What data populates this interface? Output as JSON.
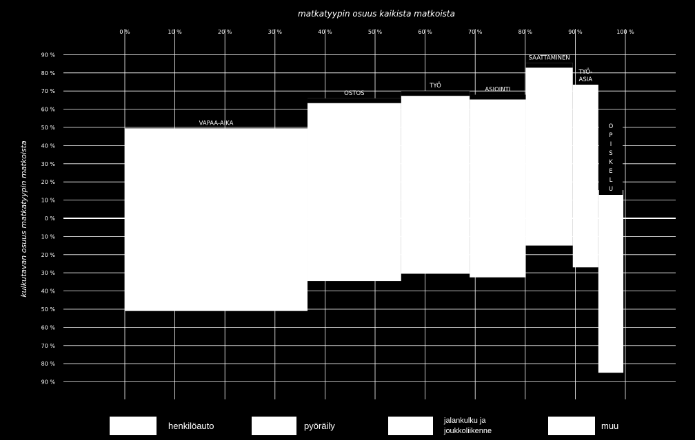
{
  "chart_data": {
    "type": "bar",
    "title": "",
    "xlabel": "matkatyypin osuus kaikista matkoista",
    "ylabel": "kulkutavan osuus matkatyypin matkoista",
    "x_ticks": [
      "0 %",
      "10 %",
      "20 %",
      "30 %",
      "40 %",
      "50 %",
      "60 %",
      "70 %",
      "80 %",
      "90 %",
      "100 %"
    ],
    "y_ticks_upper": [
      "90 %",
      "80 %",
      "70 %",
      "60 %",
      "50 %",
      "40 %",
      "30 %",
      "20 %",
      "10 %"
    ],
    "y_ticks_lower": [
      "10 %",
      "20 %",
      "30 %",
      "40 %",
      "50 %",
      "60 %",
      "70 %",
      "80 %",
      "90 %"
    ],
    "y_zero_label": "0 %",
    "xlim": [
      0,
      100
    ],
    "ylim": [
      -90,
      90
    ],
    "grid": true,
    "categories": [
      {
        "label": "VAPAA-AIKA",
        "x_start": 0,
        "x_end": 36.5,
        "top": 49.5,
        "bottom": 51
      },
      {
        "label": "OSTOS",
        "x_start": 36.5,
        "x_end": 55.2,
        "top": 66,
        "bottom": 34.5
      },
      {
        "label": "TYÖ",
        "x_start": 55.2,
        "x_end": 68.9,
        "top": 70,
        "bottom": 30.5
      },
      {
        "label": "ASIOINTI",
        "x_start": 68.9,
        "x_end": 80.1,
        "top": 68,
        "bottom": 32.5
      },
      {
        "label": "SAATTAMINEN",
        "x_start": 80.1,
        "x_end": 89.5,
        "top": 85.5,
        "bottom": 15
      },
      {
        "label": "TYÖ-ASIA",
        "x_start": 89.5,
        "x_end": 94.6,
        "top": 73.5,
        "bottom": 27
      },
      {
        "label": "OPISKELU",
        "x_start": 94.6,
        "x_end": 99.6,
        "top": 15.5,
        "bottom": 85
      }
    ],
    "legend": [
      "henkilöauto",
      "pyöräily",
      "jalankulku ja joukkoliikenne",
      "muu"
    ],
    "legend_placement": "bottom"
  }
}
